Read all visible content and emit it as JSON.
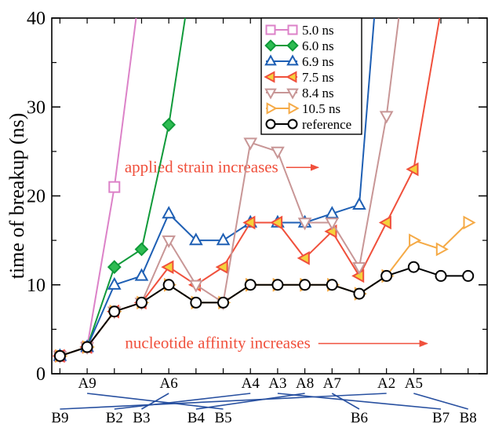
{
  "chart_data": {
    "type": "line",
    "ylabel": "time of breakup (ns)",
    "ylim": [
      0,
      40
    ],
    "yticks": [
      0,
      10,
      20,
      30,
      40
    ],
    "xlim": [
      -0.3,
      15.7
    ],
    "top_labels": [
      {
        "text": "A9",
        "x": 1
      },
      {
        "text": "A6",
        "x": 4
      },
      {
        "text": "A4",
        "x": 7
      },
      {
        "text": "A3",
        "x": 8
      },
      {
        "text": "A8",
        "x": 9
      },
      {
        "text": "A7",
        "x": 10
      },
      {
        "text": "A2",
        "x": 12
      },
      {
        "text": "A5",
        "x": 13
      }
    ],
    "bottom_labels": [
      {
        "text": "B9",
        "x": 0
      },
      {
        "text": "B2",
        "x": 2
      },
      {
        "text": "B3",
        "x": 3
      },
      {
        "text": "B4",
        "x": 5
      },
      {
        "text": "B5",
        "x": 6
      },
      {
        "text": "B6",
        "x": 11
      },
      {
        "text": "B7",
        "x": 14
      },
      {
        "text": "B8",
        "x": 15
      }
    ],
    "connectors": [
      [
        1,
        6
      ],
      [
        4,
        3
      ],
      [
        7,
        2
      ],
      [
        8,
        14
      ],
      [
        9,
        5
      ],
      [
        10,
        11
      ],
      [
        12,
        0
      ],
      [
        13,
        15
      ]
    ],
    "annotations": [
      {
        "text": "applied strain increases",
        "x": 5.2,
        "y": 23.2,
        "arrow_to": 9.5
      },
      {
        "text": "nucleotide affinity increases",
        "x": 5.8,
        "y": 3.4,
        "arrow_to": 13.5
      }
    ],
    "series": [
      {
        "name": "5.0 ns",
        "color": "#dc82c8",
        "marker": "square",
        "open": true,
        "x": [
          0,
          1,
          2,
          2.8
        ],
        "y": [
          2,
          3,
          21,
          40
        ]
      },
      {
        "name": "6.0 ns",
        "color": "#109a3a",
        "marker": "diamond",
        "open": false,
        "fill": "#2ebc52",
        "x": [
          0,
          1,
          2,
          3,
          4,
          4.6
        ],
        "y": [
          2,
          3,
          12,
          14,
          28,
          40
        ]
      },
      {
        "name": "6.9 ns",
        "color": "#1e5fb4",
        "marker": "triangle-up",
        "open": true,
        "x": [
          0,
          1,
          2,
          3,
          4,
          5,
          6,
          7,
          8,
          9,
          10,
          11,
          11.55
        ],
        "y": [
          2,
          3,
          10,
          11,
          18,
          15,
          15,
          17,
          17,
          17,
          18,
          19,
          40
        ]
      },
      {
        "name": "7.5 ns",
        "color": "#f0503c",
        "marker": "triangle-left",
        "open": false,
        "fill": "#f5d23c",
        "x": [
          0,
          1,
          2,
          3,
          4,
          5,
          6,
          7,
          8,
          9,
          10,
          11,
          12,
          13,
          13.95
        ],
        "y": [
          2,
          3,
          7,
          8,
          12,
          10,
          12,
          17,
          17,
          13,
          16,
          11,
          17,
          23,
          40
        ]
      },
      {
        "name": "8.4 ns",
        "color": "#c89696",
        "marker": "triangle-down",
        "open": true,
        "x": [
          0,
          1,
          2,
          3,
          4,
          5,
          6,
          7,
          8,
          9,
          10,
          11,
          12,
          12.45
        ],
        "y": [
          2,
          3,
          7,
          8,
          15,
          10,
          8,
          26,
          25,
          17,
          17,
          12,
          29,
          40
        ]
      },
      {
        "name": "10.5 ns",
        "color": "#f5aa46",
        "marker": "triangle-right",
        "open": true,
        "x": [
          0,
          1,
          2,
          3,
          4,
          5,
          6,
          7,
          8,
          9,
          10,
          11,
          12,
          13,
          14,
          15
        ],
        "y": [
          2,
          3,
          7,
          8,
          10,
          8,
          8,
          10,
          10,
          10,
          10,
          9,
          11,
          15,
          14,
          17
        ]
      },
      {
        "name": "reference",
        "color": "#000000",
        "marker": "circle",
        "open": true,
        "x": [
          0,
          1,
          2,
          3,
          4,
          5,
          6,
          7,
          8,
          9,
          10,
          11,
          12,
          13,
          14,
          15
        ],
        "y": [
          2,
          3,
          7,
          8,
          10,
          8,
          8,
          10,
          10,
          10,
          10,
          9,
          11,
          12,
          11,
          11
        ]
      }
    ]
  }
}
